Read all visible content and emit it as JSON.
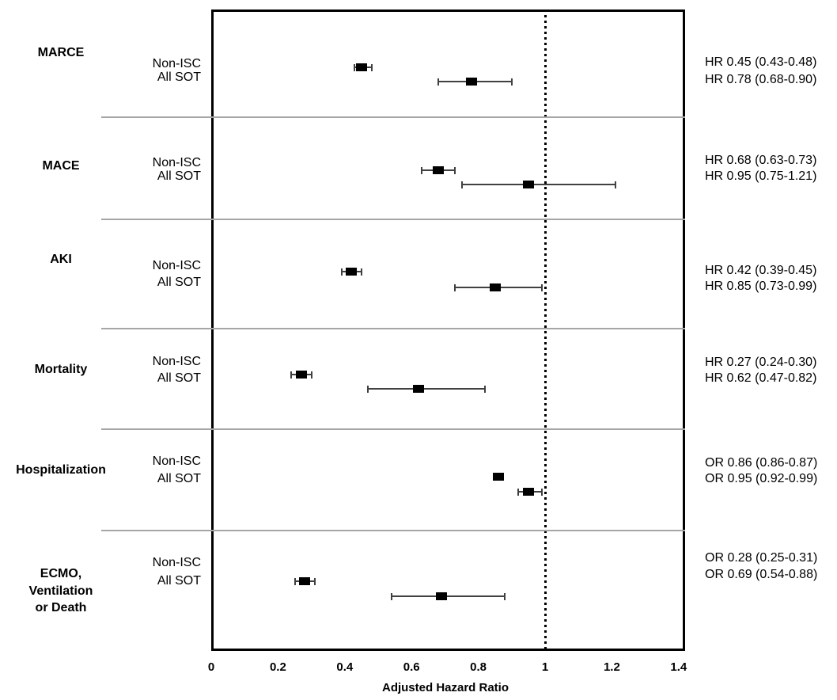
{
  "colors": {
    "marker": "#000000",
    "frame": "#000000",
    "ci_line": "#404040",
    "divider": "#a6a6a6",
    "reference_line": "#000000",
    "text": "#000000",
    "background": "#ffffff"
  },
  "chart_data": {
    "type": "scatter",
    "subtype": "forest-plot",
    "title": "",
    "xlabel": "Adjusted Hazard Ratio",
    "ylabel": "",
    "xlim": [
      0,
      1.4
    ],
    "x_ticks": [
      0,
      0.2,
      0.4,
      0.6,
      0.8,
      1,
      1.2,
      1.4
    ],
    "x_tick_labels": [
      "0",
      "0.2",
      "0.4",
      "0.6",
      "0.8",
      "1",
      "1.2",
      "1.4"
    ],
    "reference_line_x": 1,
    "grid": false,
    "legend_position": "none",
    "group_order": [
      "Non-ISC",
      "All SOT"
    ],
    "sections": [
      {
        "outcome": "MARCE",
        "outcome_lines": [
          "MARCE"
        ],
        "rows": [
          {
            "group": "Non-ISC",
            "measure": "HR",
            "estimate": 0.45,
            "ci_low": 0.43,
            "ci_high": 0.48,
            "annotation": "HR 0.45 (0.43-0.48)"
          },
          {
            "group": "All SOT",
            "measure": "HR",
            "estimate": 0.78,
            "ci_low": 0.68,
            "ci_high": 0.9,
            "annotation": "HR 0.78 (0.68-0.90)"
          }
        ]
      },
      {
        "outcome": "MACE",
        "outcome_lines": [
          "MACE"
        ],
        "rows": [
          {
            "group": "Non-ISC",
            "measure": "HR",
            "estimate": 0.68,
            "ci_low": 0.63,
            "ci_high": 0.73,
            "annotation": "HR 0.68 (0.63-0.73)"
          },
          {
            "group": "All SOT",
            "measure": "HR",
            "estimate": 0.95,
            "ci_low": 0.75,
            "ci_high": 1.21,
            "annotation": "HR 0.95 (0.75-1.21)"
          }
        ]
      },
      {
        "outcome": "AKI",
        "outcome_lines": [
          "AKI"
        ],
        "rows": [
          {
            "group": "Non-ISC",
            "measure": "HR",
            "estimate": 0.42,
            "ci_low": 0.39,
            "ci_high": 0.45,
            "annotation": "HR 0.42 (0.39-0.45)"
          },
          {
            "group": "All SOT",
            "measure": "HR",
            "estimate": 0.85,
            "ci_low": 0.73,
            "ci_high": 0.99,
            "annotation": "HR 0.85 (0.73-0.99)"
          }
        ]
      },
      {
        "outcome": "Mortality",
        "outcome_lines": [
          "Mortality"
        ],
        "rows": [
          {
            "group": "Non-ISC",
            "measure": "HR",
            "estimate": 0.27,
            "ci_low": 0.24,
            "ci_high": 0.3,
            "annotation": "HR 0.27 (0.24-0.30)"
          },
          {
            "group": "All SOT",
            "measure": "HR",
            "estimate": 0.62,
            "ci_low": 0.47,
            "ci_high": 0.82,
            "annotation": "HR 0.62 (0.47-0.82)"
          }
        ]
      },
      {
        "outcome": "Hospitalization",
        "outcome_lines": [
          "Hospitalization"
        ],
        "rows": [
          {
            "group": "Non-ISC",
            "measure": "OR",
            "estimate": 0.86,
            "ci_low": 0.86,
            "ci_high": 0.87,
            "annotation": "OR 0.86 (0.86-0.87)"
          },
          {
            "group": "All SOT",
            "measure": "OR",
            "estimate": 0.95,
            "ci_low": 0.92,
            "ci_high": 0.99,
            "annotation": "OR 0.95 (0.92-0.99)"
          }
        ]
      },
      {
        "outcome": "ECMO, Ventilation or Death",
        "outcome_lines": [
          "ECMO,",
          "Ventilation",
          "or Death"
        ],
        "rows": [
          {
            "group": "Non-ISC",
            "measure": "OR",
            "estimate": 0.28,
            "ci_low": 0.25,
            "ci_high": 0.31,
            "annotation": "OR 0.28 (0.25-0.31)"
          },
          {
            "group": "All SOT",
            "measure": "OR",
            "estimate": 0.69,
            "ci_low": 0.54,
            "ci_high": 0.88,
            "annotation": "OR 0.69 (0.54-0.88)"
          }
        ]
      }
    ]
  }
}
